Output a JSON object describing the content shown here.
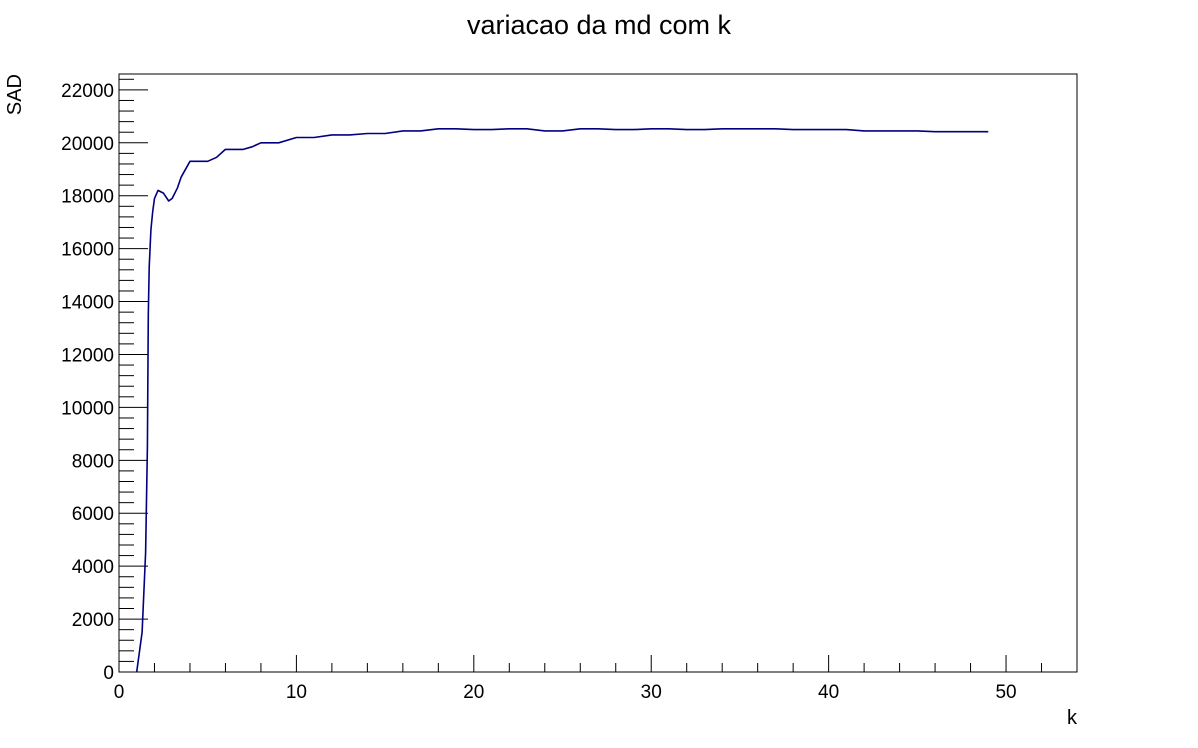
{
  "chart_data": {
    "type": "line",
    "title": "variacao da md com k",
    "xlabel": "k",
    "ylabel": "SAD",
    "xlim": [
      0,
      54
    ],
    "ylim": [
      0,
      22600
    ],
    "x_ticks": [
      0,
      10,
      20,
      30,
      40,
      50
    ],
    "y_ticks": [
      0,
      2000,
      4000,
      6000,
      8000,
      10000,
      12000,
      14000,
      16000,
      18000,
      20000,
      22000
    ],
    "grid": false,
    "legend": "none",
    "line_color": "#000080",
    "series": [
      {
        "x": [
          1,
          1.3,
          1.5,
          1.6,
          1.65,
          1.7,
          1.8,
          1.9,
          2,
          2.2,
          2.5,
          2.8,
          3,
          3.3,
          3.5,
          4,
          5,
          5.5,
          6,
          7,
          7.5,
          8,
          9,
          10,
          11,
          12,
          13,
          14,
          15,
          16,
          17,
          18,
          19,
          20,
          21,
          22,
          23,
          24,
          25,
          26,
          27,
          28,
          29,
          30,
          31,
          32,
          33,
          34,
          35,
          36,
          37,
          38,
          39,
          40,
          41,
          42,
          43,
          44,
          45,
          46,
          47,
          48,
          49
        ],
        "y": [
          0,
          1500,
          4500,
          8500,
          13500,
          15300,
          16700,
          17400,
          17900,
          18200,
          18100,
          17800,
          17900,
          18300,
          18700,
          19300,
          19300,
          19450,
          19750,
          19750,
          19850,
          20000,
          20000,
          20200,
          20200,
          20300,
          20300,
          20350,
          20350,
          20450,
          20450,
          20530,
          20530,
          20500,
          20500,
          20530,
          20530,
          20450,
          20450,
          20530,
          20530,
          20500,
          20500,
          20530,
          20530,
          20500,
          20500,
          20530,
          20530,
          20530,
          20530,
          20500,
          20500,
          20500,
          20500,
          20450,
          20450,
          20450,
          20450,
          20420,
          20420,
          20420,
          20420
        ]
      }
    ]
  }
}
